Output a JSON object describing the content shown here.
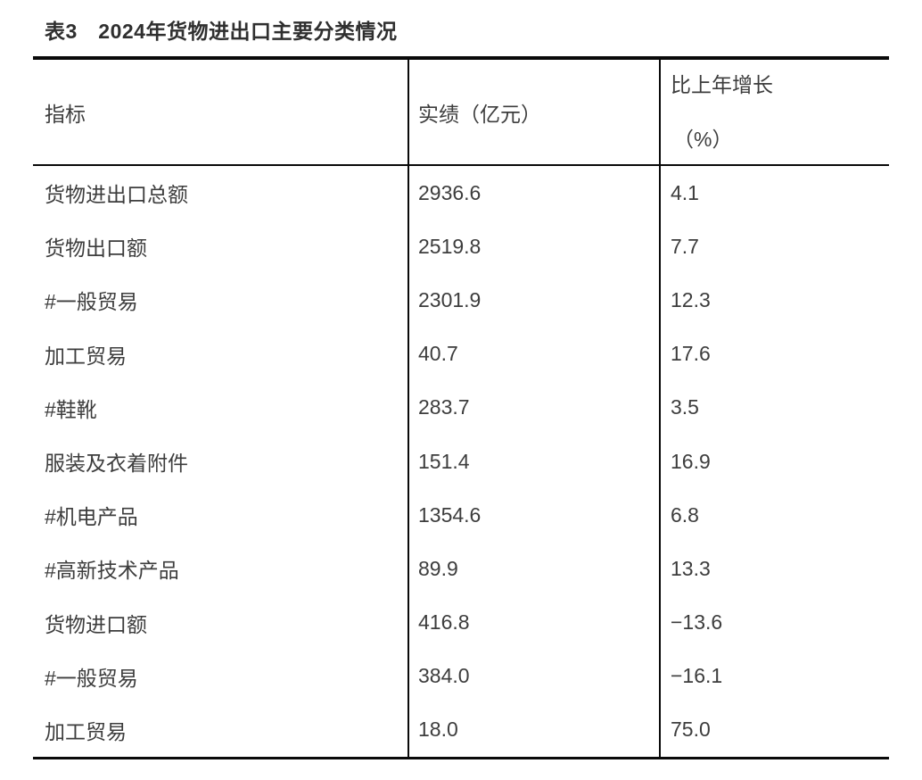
{
  "page": {
    "background": "#ffffff",
    "text_color": "#3d3d3d",
    "border_color": "#0a0a0a"
  },
  "title": "表3　2024年货物进出口主要分类情况",
  "table": {
    "header": {
      "indicator": "指标",
      "value": "实绩（亿元）",
      "growth_line1": "比上年增长",
      "growth_line2": "（%）"
    },
    "rows": [
      {
        "indicator": "货物进出口总额",
        "value": "2936.6",
        "growth": "4.1"
      },
      {
        "indicator": "货物出口额",
        "value": "2519.8",
        "growth": "7.7"
      },
      {
        "indicator": "#一般贸易",
        "value": "2301.9",
        "growth": "12.3"
      },
      {
        "indicator": "加工贸易",
        "value": "40.7",
        "growth": "17.6"
      },
      {
        "indicator": "#鞋靴",
        "value": "283.7",
        "growth": "3.5"
      },
      {
        "indicator": "服装及衣着附件",
        "value": "151.4",
        "growth": "16.9"
      },
      {
        "indicator": "#机电产品",
        "value": "1354.6",
        "growth": "6.8"
      },
      {
        "indicator": "#高新技术产品",
        "value": "89.9",
        "growth": "13.3"
      },
      {
        "indicator": "货物进口额",
        "value": "416.8",
        "growth": "−13.6"
      },
      {
        "indicator": "#一般贸易",
        "value": "384.0",
        "growth": "−16.1"
      },
      {
        "indicator": "加工贸易",
        "value": "18.0",
        "growth": "75.0"
      }
    ]
  }
}
